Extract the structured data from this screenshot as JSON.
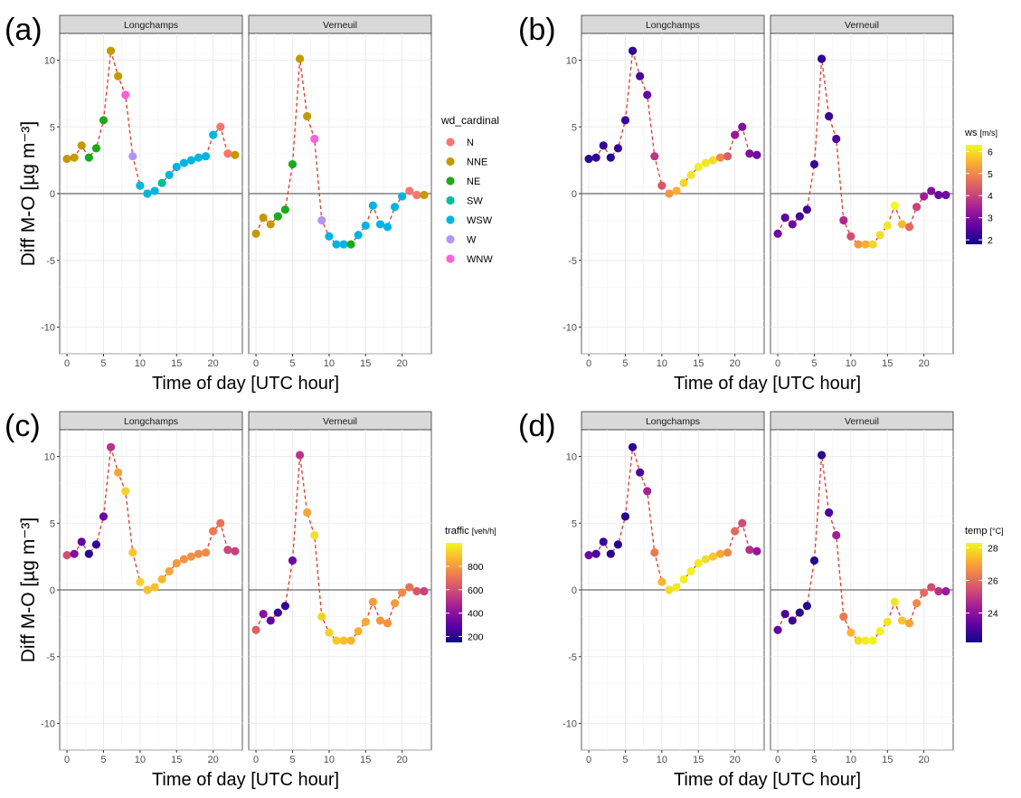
{
  "panels": [
    {
      "letter": "(a)",
      "ylabel": "Diff M-O [µg m⁻³]",
      "xlabel": "Time of day [UTC hour]"
    },
    {
      "letter": "(b)",
      "ylabel": "",
      "xlabel": "Time of day [UTC hour]"
    },
    {
      "letter": "(c)",
      "ylabel": "Diff M-O [µg m⁻³]",
      "xlabel": "Time of day [UTC hour]"
    },
    {
      "letter": "(d)",
      "ylabel": "",
      "xlabel": "Time of day [UTC hour]"
    }
  ],
  "facet_labels": [
    "Longchamps",
    "Verneuil"
  ],
  "legends": {
    "a": {
      "title": "wd_cardinal",
      "items": [
        {
          "label": "N",
          "color": "#F8766D"
        },
        {
          "label": "NNE",
          "color": "#C49A00"
        },
        {
          "label": "NE",
          "color": "#1BAA1B"
        },
        {
          "label": "SW",
          "color": "#00BD9D"
        },
        {
          "label": "WSW",
          "color": "#00B5E0"
        },
        {
          "label": "W",
          "color": "#B197F2"
        },
        {
          "label": "WNW",
          "color": "#FA62DB"
        }
      ]
    },
    "b": {
      "title": "ws",
      "unit": "[m/s]",
      "min": 1.8,
      "max": 6.3,
      "ticks": [
        "2",
        "3",
        "4",
        "5",
        "6"
      ],
      "tick_values": [
        2,
        3,
        4,
        5,
        6
      ]
    },
    "c": {
      "title": "traffic",
      "unit": "[veh/h]",
      "min": 150,
      "max": 1000,
      "ticks": [
        "200",
        "400",
        "600",
        "800"
      ],
      "tick_values": [
        200,
        400,
        600,
        800
      ]
    },
    "d": {
      "title": "temp",
      "unit": "[°C]",
      "min": 22.2,
      "max": 28.3,
      "ticks": [
        "24",
        "26",
        "28"
      ],
      "tick_values": [
        24,
        26,
        28
      ]
    }
  },
  "chart_data": [
    {
      "type": "scatter",
      "panel": "(a)",
      "facets": [
        "Longchamps",
        "Verneuil"
      ],
      "xlabel": "Time of day [UTC hour]",
      "ylabel": "Diff M-O [µg m⁻³]",
      "xlim": [
        -1,
        24
      ],
      "ylim": [
        -12,
        12
      ],
      "x_ticks": [
        0,
        5,
        10,
        15,
        20
      ],
      "y_ticks": [
        -10,
        -5,
        0,
        5,
        10
      ],
      "grid": true,
      "legend_position": "right",
      "color_by": "wd_cardinal",
      "series": [
        {
          "facet": "Longchamps",
          "x": [
            0,
            1,
            2,
            3,
            4,
            5,
            6,
            7,
            8,
            9,
            10,
            11,
            12,
            13,
            14,
            15,
            16,
            17,
            18,
            19,
            20,
            21,
            22,
            23
          ],
          "y": [
            2.6,
            2.7,
            3.6,
            2.7,
            3.4,
            5.5,
            10.7,
            8.8,
            7.4,
            2.8,
            0.6,
            0.0,
            0.2,
            0.8,
            1.4,
            2.0,
            2.3,
            2.5,
            2.7,
            2.8,
            4.4,
            5.0,
            3.0,
            2.9
          ],
          "category": [
            "NNE",
            "NNE",
            "NNE",
            "NE",
            "NE",
            "NE",
            "NNE",
            "NNE",
            "WNW",
            "W",
            "WSW",
            "WSW",
            "WSW",
            "SW",
            "WSW",
            "WSW",
            "WSW",
            "WSW",
            "WSW",
            "WSW",
            "WSW",
            "N",
            "N",
            "NNE"
          ]
        },
        {
          "facet": "Verneuil",
          "x": [
            0,
            1,
            2,
            3,
            4,
            5,
            6,
            7,
            8,
            9,
            10,
            11,
            12,
            13,
            14,
            15,
            16,
            17,
            18,
            19,
            20,
            21,
            22,
            23
          ],
          "y": [
            -3.0,
            -1.8,
            -2.3,
            -1.7,
            -1.2,
            2.2,
            10.1,
            5.8,
            4.1,
            -2.0,
            -3.2,
            -3.8,
            -3.8,
            -3.8,
            -3.1,
            -2.4,
            -0.9,
            -2.3,
            -2.5,
            -1.0,
            -0.2,
            0.2,
            -0.1,
            -0.1
          ],
          "category": [
            "NNE",
            "NNE",
            "NNE",
            "NE",
            "NE",
            "NE",
            "NNE",
            "NNE",
            "WNW",
            "W",
            "WSW",
            "WSW",
            "WSW",
            "NE",
            "WSW",
            "WSW",
            "WSW",
            "WSW",
            "WSW",
            "WSW",
            "WSW",
            "N",
            "N",
            "NNE"
          ]
        }
      ]
    },
    {
      "type": "scatter",
      "panel": "(b)",
      "facets": [
        "Longchamps",
        "Verneuil"
      ],
      "xlabel": "Time of day [UTC hour]",
      "xlim": [
        -1,
        24
      ],
      "ylim": [
        -12,
        12
      ],
      "x_ticks": [
        0,
        5,
        10,
        15,
        20
      ],
      "y_ticks": [
        -10,
        -5,
        0,
        5,
        10
      ],
      "grid": true,
      "legend_position": "right",
      "color_by": "ws",
      "series": [
        {
          "facet": "Longchamps",
          "x": [
            0,
            1,
            2,
            3,
            4,
            5,
            6,
            7,
            8,
            9,
            10,
            11,
            12,
            13,
            14,
            15,
            16,
            17,
            18,
            19,
            20,
            21,
            22,
            23
          ],
          "y": [
            2.6,
            2.7,
            3.6,
            2.7,
            3.4,
            5.5,
            10.7,
            8.8,
            7.4,
            2.8,
            0.6,
            0.0,
            0.2,
            0.8,
            1.4,
            2.0,
            2.3,
            2.5,
            2.7,
            2.8,
            4.4,
            5.0,
            3.0,
            2.9
          ],
          "value": [
            2.1,
            2.2,
            2.2,
            2.1,
            2.2,
            2.3,
            2.1,
            2.4,
            2.7,
            3.8,
            4.3,
            5.2,
            5.5,
            5.9,
            6.1,
            6.2,
            6.1,
            6.0,
            5.0,
            4.4,
            3.3,
            3.0,
            3.0,
            2.8
          ]
        },
        {
          "facet": "Verneuil",
          "x": [
            0,
            1,
            2,
            3,
            4,
            5,
            6,
            7,
            8,
            9,
            10,
            11,
            12,
            13,
            14,
            15,
            16,
            17,
            18,
            19,
            20,
            21,
            22,
            23
          ],
          "y": [
            -3.0,
            -1.8,
            -2.3,
            -1.7,
            -1.2,
            2.2,
            10.1,
            5.8,
            4.1,
            -2.0,
            -3.2,
            -3.8,
            -3.8,
            -3.8,
            -3.1,
            -2.4,
            -0.9,
            -2.3,
            -2.5,
            -1.0,
            -0.2,
            0.2,
            -0.1,
            -0.1
          ],
          "value": [
            2.8,
            2.6,
            2.8,
            2.4,
            2.3,
            2.2,
            2.1,
            2.2,
            2.4,
            3.6,
            4.2,
            5.2,
            5.5,
            5.9,
            6.0,
            6.1,
            6.3,
            5.6,
            4.6,
            4.0,
            3.4,
            3.0,
            2.7,
            2.8
          ]
        }
      ]
    },
    {
      "type": "scatter",
      "panel": "(c)",
      "facets": [
        "Longchamps",
        "Verneuil"
      ],
      "xlabel": "Time of day [UTC hour]",
      "ylabel": "Diff M-O [µg m⁻³]",
      "xlim": [
        -1,
        24
      ],
      "ylim": [
        -12,
        12
      ],
      "x_ticks": [
        0,
        5,
        10,
        15,
        20
      ],
      "y_ticks": [
        -10,
        -5,
        0,
        5,
        10
      ],
      "grid": true,
      "legend_position": "right",
      "color_by": "traffic",
      "series": [
        {
          "facet": "Longchamps",
          "x": [
            0,
            1,
            2,
            3,
            4,
            5,
            6,
            7,
            8,
            9,
            10,
            11,
            12,
            13,
            14,
            15,
            16,
            17,
            18,
            19,
            20,
            21,
            22,
            23
          ],
          "y": [
            2.6,
            2.7,
            3.6,
            2.7,
            3.4,
            5.5,
            10.7,
            8.8,
            7.4,
            2.8,
            0.6,
            0.0,
            0.2,
            0.8,
            1.4,
            2.0,
            2.3,
            2.5,
            2.7,
            2.8,
            4.4,
            5.0,
            3.0,
            2.9
          ],
          "value": [
            600,
            380,
            300,
            200,
            220,
            320,
            520,
            820,
            920,
            900,
            920,
            880,
            880,
            860,
            820,
            800,
            780,
            780,
            760,
            760,
            720,
            700,
            580,
            560
          ]
        },
        {
          "facet": "Verneuil",
          "x": [
            0,
            1,
            2,
            3,
            4,
            5,
            6,
            7,
            8,
            9,
            10,
            11,
            12,
            13,
            14,
            15,
            16,
            17,
            18,
            19,
            20,
            21,
            22,
            23
          ],
          "y": [
            -3.0,
            -1.8,
            -2.3,
            -1.7,
            -1.2,
            2.2,
            10.1,
            5.8,
            4.1,
            -2.0,
            -3.2,
            -3.8,
            -3.8,
            -3.8,
            -3.1,
            -2.4,
            -0.9,
            -2.3,
            -2.5,
            -1.0,
            -0.2,
            0.2,
            -0.1,
            -0.1
          ],
          "value": [
            650,
            400,
            300,
            230,
            220,
            330,
            520,
            820,
            950,
            920,
            920,
            900,
            880,
            860,
            850,
            830,
            800,
            790,
            780,
            800,
            760,
            700,
            620,
            560
          ]
        }
      ]
    },
    {
      "type": "scatter",
      "panel": "(d)",
      "facets": [
        "Longchamps",
        "Verneuil"
      ],
      "xlabel": "Time of day [UTC hour]",
      "xlim": [
        -1,
        24
      ],
      "ylim": [
        -12,
        12
      ],
      "x_ticks": [
        0,
        5,
        10,
        15,
        20
      ],
      "y_ticks": [
        -10,
        -5,
        0,
        5,
        10
      ],
      "grid": true,
      "legend_position": "right",
      "color_by": "temp",
      "series": [
        {
          "facet": "Longchamps",
          "x": [
            0,
            1,
            2,
            3,
            4,
            5,
            6,
            7,
            8,
            9,
            10,
            11,
            12,
            13,
            14,
            15,
            16,
            17,
            18,
            19,
            20,
            21,
            22,
            23
          ],
          "y": [
            2.6,
            2.7,
            3.6,
            2.7,
            3.4,
            5.5,
            10.7,
            8.8,
            7.4,
            2.8,
            0.6,
            0.0,
            0.2,
            0.8,
            1.4,
            2.0,
            2.3,
            2.5,
            2.7,
            2.8,
            4.4,
            5.0,
            3.0,
            2.9
          ],
          "value": [
            23.5,
            23.0,
            22.8,
            22.6,
            22.5,
            22.5,
            22.6,
            23.0,
            24.5,
            26.3,
            27.3,
            27.9,
            28.1,
            28.2,
            28.2,
            28.1,
            27.9,
            27.6,
            27.1,
            26.6,
            26.0,
            25.4,
            24.8,
            24.2
          ]
        },
        {
          "facet": "Verneuil",
          "x": [
            0,
            1,
            2,
            3,
            4,
            5,
            6,
            7,
            8,
            9,
            10,
            11,
            12,
            13,
            14,
            15,
            16,
            17,
            18,
            19,
            20,
            21,
            22,
            23
          ],
          "y": [
            -3.0,
            -1.8,
            -2.3,
            -1.7,
            -1.2,
            2.2,
            10.1,
            5.8,
            4.1,
            -2.0,
            -3.2,
            -3.8,
            -3.8,
            -3.8,
            -3.1,
            -2.4,
            -0.9,
            -2.3,
            -2.5,
            -1.0,
            -0.2,
            0.2,
            -0.1,
            -0.1
          ],
          "value": [
            23.4,
            23.0,
            22.8,
            22.6,
            22.5,
            22.5,
            22.6,
            23.0,
            24.4,
            26.3,
            27.3,
            27.9,
            28.1,
            28.2,
            28.2,
            28.0,
            28.0,
            27.5,
            27.0,
            26.6,
            26.0,
            25.4,
            24.8,
            24.3
          ]
        }
      ]
    }
  ]
}
